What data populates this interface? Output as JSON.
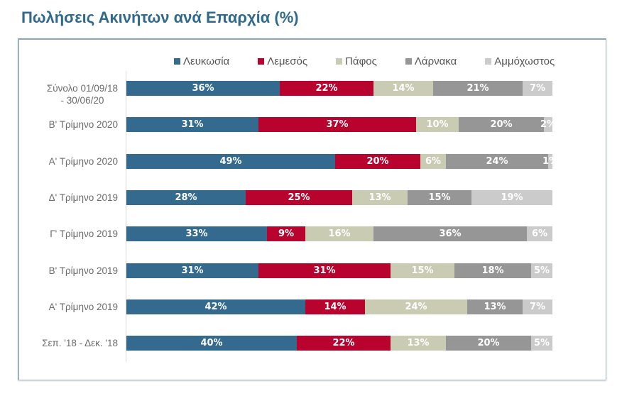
{
  "page": {
    "title": "Πωλήσεις Ακινήτων ανά Επαρχία (%)"
  },
  "chart_data": {
    "type": "bar",
    "orientation": "horizontal",
    "stacked": "percent",
    "title": "Πωλήσεις Ακινήτων ανά Επαρχία (%)",
    "xlabel": "",
    "ylabel": "",
    "xlim": [
      0,
      100
    ],
    "grid": false,
    "legend_position": "top",
    "categories": [
      "Σύνολο 01/09/18\n- 30/06/20",
      "Β' Τρίμηνο 2020",
      "Α' Τρίμηνο 2020",
      "Δ' Τρίμηνο 2019",
      "Γ' Τρίμηνο 2019",
      "Β' Τρίμηνο 2019",
      "Α' Τρίμηνο 2019",
      "Σεπ. '18 - Δεκ. '18"
    ],
    "series": [
      {
        "name": "Λευκωσία",
        "color": "#336a8e",
        "values": [
          36,
          31,
          49,
          28,
          33,
          31,
          42,
          40
        ]
      },
      {
        "name": "Λεμεσός",
        "color": "#b8032e",
        "values": [
          22,
          37,
          20,
          25,
          9,
          31,
          14,
          22
        ]
      },
      {
        "name": "Πάφος",
        "color": "#c9cbb2",
        "values": [
          14,
          10,
          6,
          13,
          16,
          15,
          24,
          13
        ]
      },
      {
        "name": "Λάρνακα",
        "color": "#969696",
        "values": [
          21,
          20,
          24,
          15,
          36,
          18,
          13,
          20
        ]
      },
      {
        "name": "Αμμόχωστος",
        "color": "#cbcbcb",
        "values": [
          7,
          2,
          1,
          19,
          6,
          5,
          7,
          5
        ]
      }
    ],
    "data_labels": true,
    "label_suffix": "%"
  }
}
